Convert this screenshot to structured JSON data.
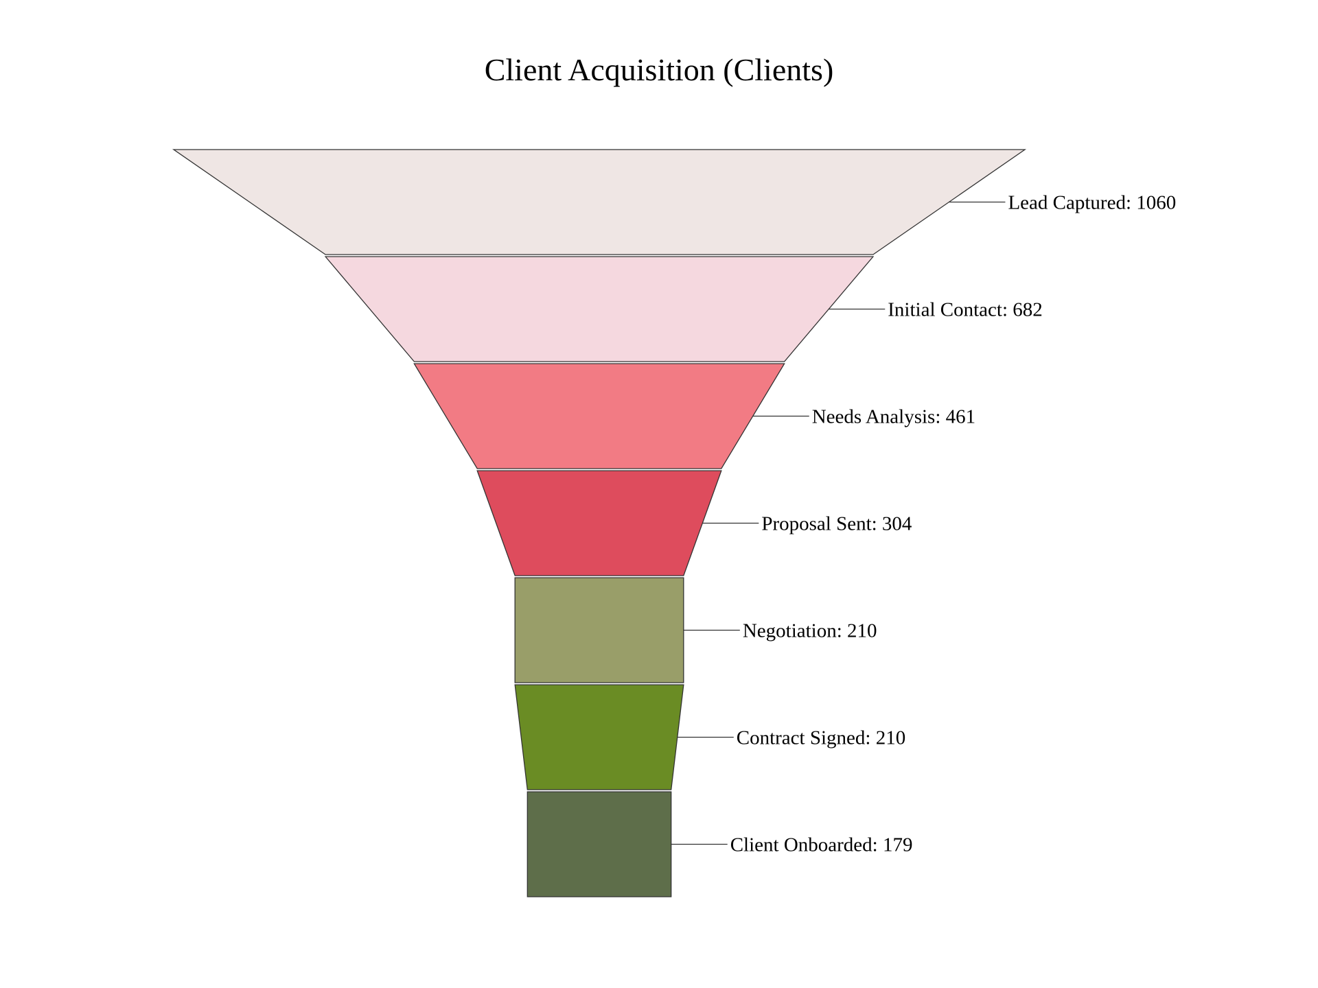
{
  "chart_data": {
    "type": "funnel",
    "title": "Client Acquisition (Clients)",
    "stages": [
      {
        "label": "Lead Captured",
        "value": 1060,
        "display": "Lead Captured: 1060",
        "color": "#efe6e4"
      },
      {
        "label": "Initial Contact",
        "value": 682,
        "display": "Initial Contact: 682",
        "color": "#f5d8df"
      },
      {
        "label": "Needs Analysis",
        "value": 461,
        "display": "Needs Analysis: 461",
        "color": "#f27b84"
      },
      {
        "label": "Proposal Sent",
        "value": 304,
        "display": "Proposal Sent: 304",
        "color": "#de4c5d"
      },
      {
        "label": "Negotiation",
        "value": 210,
        "display": "Negotiation: 210",
        "color": "#999e69"
      },
      {
        "label": "Contract Signed",
        "value": 210,
        "display": "Contract Signed: 210",
        "color": "#6a8c24"
      },
      {
        "label": "Client Onboarded",
        "value": 179,
        "display": "Client Onboarded: 179",
        "color": "#5e6e4a"
      }
    ],
    "legend": false,
    "grid": false
  }
}
